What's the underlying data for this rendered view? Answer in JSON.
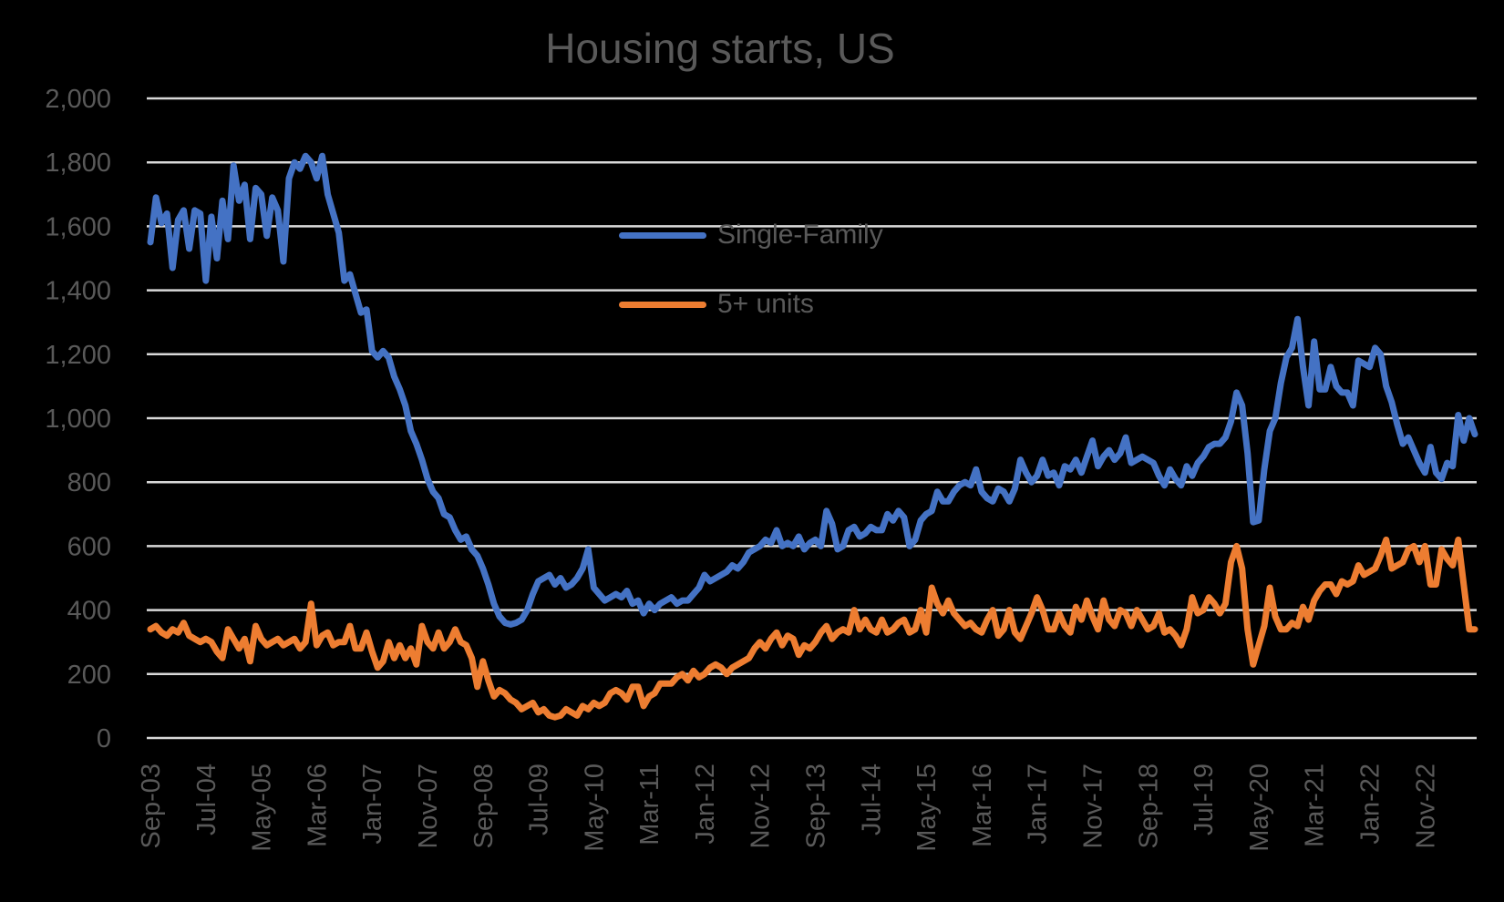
{
  "title": "Housing starts, US",
  "colors": {
    "single_family": "#4472C4",
    "five_plus_units": "#ED7D31",
    "gridline": "#D9D9D9",
    "axis_text": "#595959",
    "title_text": "#595959",
    "background": "#000000"
  },
  "legend": [
    {
      "label": "Single-Family",
      "color": "#4472C4"
    },
    {
      "label": "5+ units",
      "color": "#ED7D31"
    }
  ],
  "chart_data": {
    "type": "line",
    "title": "Housing starts, US",
    "xlabel": "",
    "ylabel": "",
    "ylim": [
      0,
      2000
    ],
    "ytick_interval": 200,
    "ytick_labels": [
      "0",
      "200",
      "400",
      "600",
      "800",
      "1,000",
      "1,200",
      "1,400",
      "1,600",
      "1,800",
      "2,000"
    ],
    "xtick_interval_months": 10,
    "xtick_labels": [
      "Sep-03",
      "Jul-04",
      "May-05",
      "Mar-06",
      "Jan-07",
      "Nov-07",
      "Sep-08",
      "Jul-09",
      "May-10",
      "Mar-11",
      "Jan-12",
      "Nov-12",
      "Sep-13",
      "Jul-14",
      "May-15",
      "Mar-16",
      "Jan-17",
      "Nov-17",
      "Sep-18",
      "Jul-19",
      "May-20",
      "Mar-21",
      "Jan-22",
      "Nov-22"
    ],
    "x_start": "Sep-2003",
    "x_end": "Aug-2023",
    "frequency": "monthly",
    "grid": "horizontal",
    "legend_position": "center",
    "series": [
      {
        "name": "Single-Family",
        "color": "#4472C4",
        "values": [
          1550,
          1690,
          1610,
          1640,
          1470,
          1620,
          1650,
          1530,
          1650,
          1640,
          1430,
          1630,
          1500,
          1680,
          1560,
          1790,
          1680,
          1730,
          1560,
          1720,
          1700,
          1570,
          1690,
          1650,
          1490,
          1750,
          1800,
          1780,
          1820,
          1800,
          1750,
          1820,
          1700,
          1640,
          1580,
          1430,
          1450,
          1390,
          1330,
          1340,
          1210,
          1190,
          1210,
          1190,
          1130,
          1090,
          1040,
          960,
          920,
          870,
          810,
          770,
          750,
          700,
          690,
          650,
          620,
          630,
          590,
          570,
          530,
          480,
          420,
          380,
          360,
          355,
          360,
          370,
          400,
          450,
          490,
          500,
          510,
          480,
          500,
          470,
          480,
          500,
          530,
          590,
          470,
          450,
          430,
          440,
          450,
          440,
          460,
          420,
          430,
          390,
          420,
          400,
          420,
          430,
          440,
          420,
          430,
          430,
          450,
          470,
          510,
          490,
          500,
          510,
          520,
          540,
          530,
          550,
          580,
          590,
          600,
          620,
          610,
          650,
          600,
          610,
          600,
          630,
          590,
          610,
          620,
          600,
          710,
          670,
          590,
          600,
          650,
          660,
          630,
          640,
          660,
          650,
          650,
          700,
          680,
          710,
          690,
          600,
          620,
          680,
          700,
          710,
          770,
          740,
          740,
          770,
          790,
          800,
          790,
          840,
          770,
          750,
          740,
          780,
          770,
          740,
          780,
          870,
          830,
          800,
          820,
          870,
          820,
          830,
          790,
          850,
          840,
          870,
          830,
          880,
          930,
          850,
          880,
          900,
          870,
          890,
          940,
          860,
          870,
          880,
          870,
          860,
          820,
          790,
          840,
          810,
          790,
          850,
          820,
          860,
          880,
          910,
          920,
          920,
          940,
          990,
          1080,
          1040,
          890,
          675,
          680,
          840,
          960,
          1000,
          1110,
          1190,
          1220,
          1310,
          1160,
          1040,
          1240,
          1090,
          1090,
          1160,
          1100,
          1080,
          1080,
          1040,
          1180,
          1170,
          1160,
          1220,
          1200,
          1100,
          1050,
          980,
          920,
          940,
          900,
          860,
          830,
          910,
          830,
          810,
          860,
          850,
          1010,
          930,
          1000,
          950
        ]
      },
      {
        "name": "5+ units",
        "color": "#ED7D31",
        "values": [
          340,
          350,
          330,
          320,
          340,
          330,
          360,
          320,
          310,
          300,
          310,
          300,
          270,
          250,
          340,
          310,
          280,
          310,
          240,
          350,
          310,
          290,
          300,
          310,
          290,
          300,
          310,
          280,
          300,
          420,
          290,
          320,
          330,
          290,
          300,
          300,
          350,
          280,
          280,
          330,
          270,
          220,
          240,
          300,
          250,
          290,
          250,
          280,
          230,
          350,
          300,
          280,
          330,
          280,
          300,
          340,
          300,
          290,
          250,
          160,
          240,
          180,
          130,
          150,
          140,
          120,
          110,
          90,
          100,
          110,
          80,
          90,
          70,
          65,
          70,
          90,
          80,
          70,
          100,
          90,
          110,
          100,
          110,
          140,
          150,
          140,
          120,
          160,
          160,
          100,
          130,
          140,
          170,
          170,
          170,
          190,
          200,
          180,
          210,
          190,
          200,
          220,
          230,
          220,
          200,
          220,
          230,
          240,
          250,
          280,
          300,
          280,
          310,
          330,
          290,
          320,
          310,
          260,
          290,
          280,
          300,
          330,
          350,
          310,
          330,
          340,
          330,
          400,
          340,
          370,
          340,
          330,
          370,
          330,
          340,
          360,
          370,
          330,
          340,
          400,
          330,
          470,
          420,
          390,
          430,
          390,
          370,
          350,
          360,
          340,
          330,
          370,
          400,
          320,
          340,
          400,
          330,
          310,
          350,
          390,
          440,
          400,
          340,
          340,
          390,
          350,
          330,
          410,
          370,
          430,
          380,
          340,
          430,
          370,
          350,
          400,
          390,
          350,
          400,
          370,
          340,
          350,
          390,
          330,
          340,
          320,
          290,
          340,
          440,
          390,
          400,
          440,
          420,
          390,
          420,
          550,
          600,
          530,
          340,
          230,
          290,
          350,
          470,
          380,
          340,
          340,
          360,
          350,
          410,
          370,
          430,
          460,
          480,
          480,
          450,
          490,
          480,
          490,
          540,
          510,
          520,
          530,
          570,
          620,
          530,
          540,
          550,
          590,
          600,
          550,
          600,
          480,
          480,
          590,
          560,
          540,
          620,
          480,
          340,
          340
        ]
      }
    ]
  }
}
